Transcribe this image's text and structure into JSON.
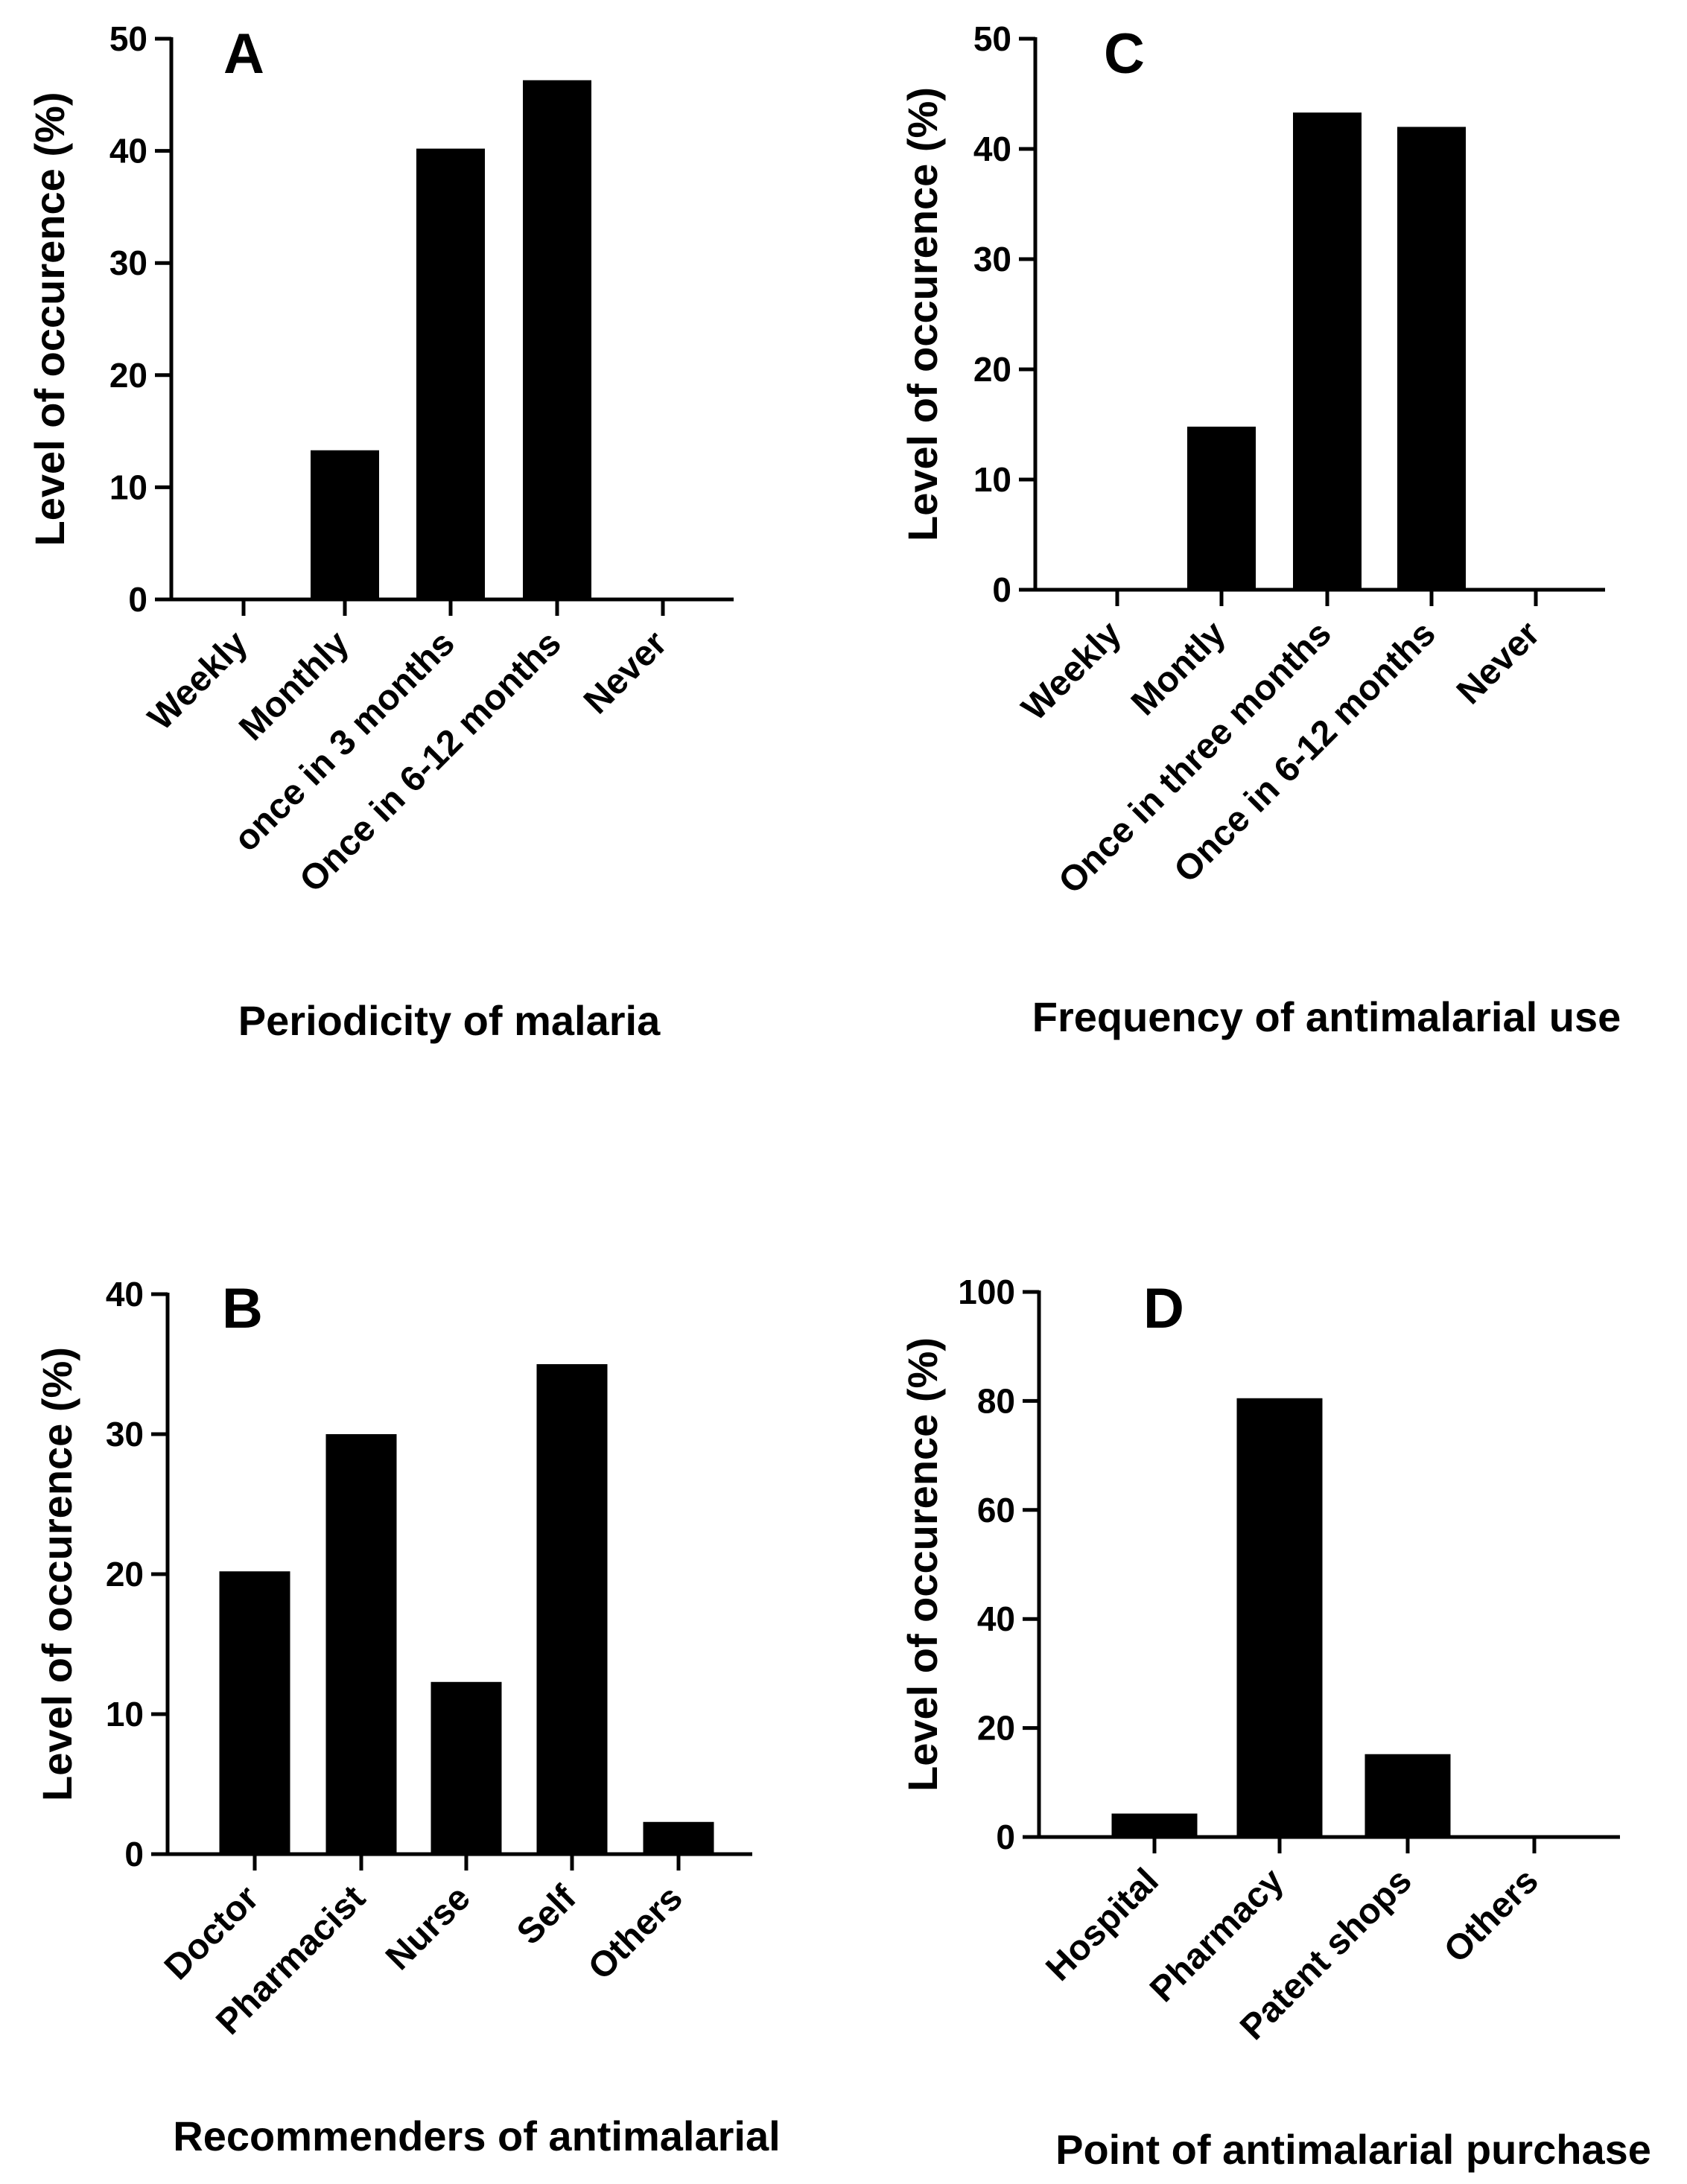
{
  "colors": {
    "bar": "#000000",
    "axis": "#000000",
    "background": "#ffffff"
  },
  "chart_data": [
    {
      "id": "A",
      "type": "bar",
      "panel_label": "A",
      "title": "",
      "xlabel": "Periodicity of malaria",
      "ylabel": "Level of occurence (%)",
      "ylim": [
        0,
        50
      ],
      "yticks": [
        0,
        10,
        20,
        30,
        40,
        50
      ],
      "categories": [
        "Weekly",
        "Monthly",
        "once in 3 months",
        "Once in 6-12 months",
        "Never"
      ],
      "values": [
        0,
        13.3,
        40.2,
        46.3,
        0
      ],
      "grid": false
    },
    {
      "id": "C",
      "type": "bar",
      "panel_label": "C",
      "title": "",
      "xlabel": "Frequency of antimalarial use",
      "ylabel": "Level of occurence (%)",
      "ylim": [
        0,
        50
      ],
      "yticks": [
        0,
        10,
        20,
        30,
        40,
        50
      ],
      "categories": [
        "Weekly",
        "Montly",
        "Once in three months",
        "Once in 6-12 months",
        "Never"
      ],
      "values": [
        0,
        14.8,
        43.3,
        42.0,
        0
      ],
      "grid": false
    },
    {
      "id": "B",
      "type": "bar",
      "panel_label": "B",
      "title": "",
      "xlabel": "Recommenders of antimalarial",
      "ylabel": "Level of occurence (%)",
      "ylim": [
        0,
        40
      ],
      "yticks": [
        0,
        10,
        20,
        30,
        40
      ],
      "categories": [
        "Doctor",
        "Pharmacist",
        "Nurse",
        "Self",
        "Others"
      ],
      "values": [
        20.2,
        30.0,
        12.3,
        35.0,
        2.3
      ],
      "grid": false
    },
    {
      "id": "D",
      "type": "bar",
      "panel_label": "D",
      "title": "",
      "xlabel": "Point of antimalarial purchase",
      "ylabel": "Level of occurence (%)",
      "ylim": [
        0,
        100
      ],
      "yticks": [
        0,
        20,
        40,
        60,
        80,
        100
      ],
      "categories": [
        "Hospital",
        "Pharmacy",
        "Patent shops",
        "Others"
      ],
      "values": [
        4.3,
        80.5,
        15.2,
        0
      ],
      "grid": false
    }
  ]
}
